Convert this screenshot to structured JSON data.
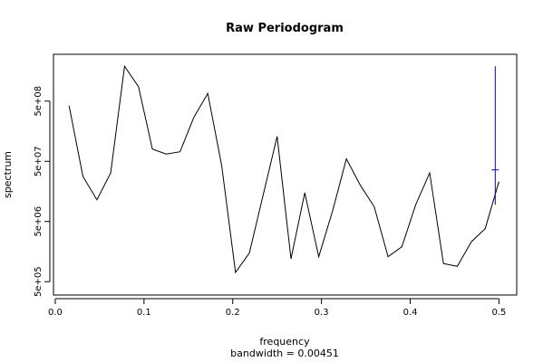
{
  "chart_data": {
    "type": "line",
    "title": "Raw Periodogram",
    "xlabel": "frequency",
    "xlabel_sub": "bandwidth = 0.00451",
    "ylabel": "spectrum",
    "y_scale": "log",
    "xlim": [
      -0.002,
      0.52
    ],
    "ylim": [
      300000,
      3000000000
    ],
    "x_ticks": [
      0.0,
      0.1,
      0.2,
      0.3,
      0.4,
      0.5
    ],
    "x_tick_labels": [
      "0.0",
      "0.1",
      "0.2",
      "0.3",
      "0.4",
      "0.5"
    ],
    "y_ticks": [
      500000,
      5000000,
      50000000,
      500000000
    ],
    "y_tick_labels": [
      "5e+05",
      "5e+06",
      "5e+07",
      "5e+08"
    ],
    "series": [
      {
        "color": "#000000",
        "x": [
          0.0156,
          0.0312,
          0.0469,
          0.0625,
          0.0781,
          0.0938,
          0.1094,
          0.125,
          0.1406,
          0.1562,
          0.1719,
          0.1875,
          0.2031,
          0.2188,
          0.2344,
          0.25,
          0.2656,
          0.2812,
          0.2969,
          0.3125,
          0.3281,
          0.3438,
          0.3594,
          0.375,
          0.3906,
          0.4062,
          0.4219,
          0.4375,
          0.4531,
          0.4688,
          0.4844,
          0.5
        ],
        "y": [
          420000000,
          28000000,
          11500000,
          32000000,
          1900000000,
          870000000,
          80000000,
          66000000,
          72000000,
          270000000,
          670000000,
          43000000,
          710000,
          1500000,
          14000000,
          130000000,
          1200000,
          15000000,
          1300000,
          7500000,
          55000000,
          20000000,
          8800000,
          1300000,
          1900000,
          9500000,
          32000000,
          1000000,
          900000,
          2300000,
          3800000,
          23000000
        ]
      }
    ],
    "ci_bar": {
      "color": "#0000cc",
      "x": 0.4958,
      "y_low": 9500000,
      "y_high": 1900000000,
      "y_center": 36000000
    }
  }
}
